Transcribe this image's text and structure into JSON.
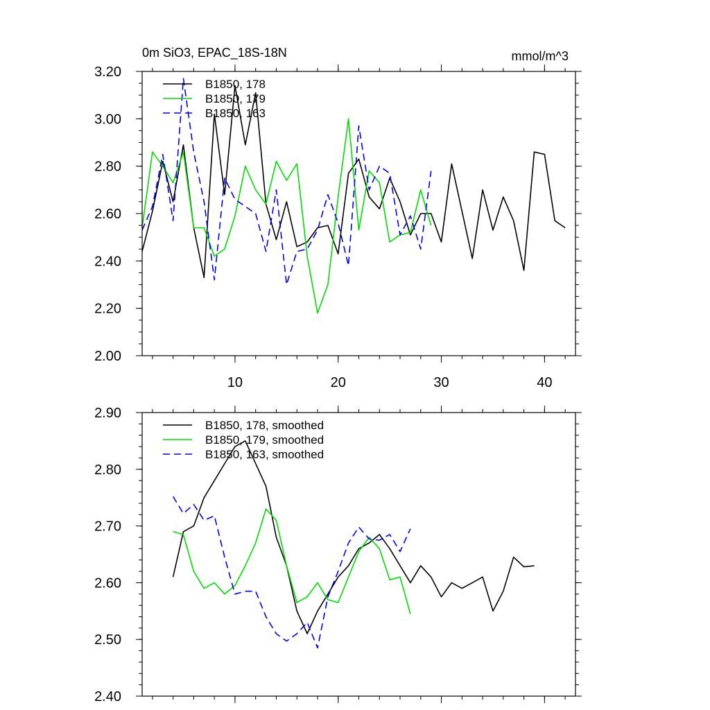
{
  "chart_data": [
    {
      "type": "line",
      "title": "0m SiO3, EPAC_18S-18N",
      "units": "mmol/m^3",
      "xlim": [
        1,
        43
      ],
      "ylim": [
        2.0,
        3.2
      ],
      "x_ticks": [
        10,
        20,
        30,
        40
      ],
      "x_tick_labels": [
        "10",
        "20",
        "30",
        "40"
      ],
      "y_ticks": [
        2.0,
        2.2,
        2.4,
        2.6,
        2.8,
        3.0,
        3.2
      ],
      "y_tick_labels": [
        "2.00",
        "2.20",
        "2.40",
        "2.60",
        "2.80",
        "3.00",
        "3.20"
      ],
      "legend_position": "top-left",
      "series": [
        {
          "name": "B1850, 178",
          "color": "#000000",
          "dash": "solid",
          "x": [
            1,
            2,
            3,
            4,
            5,
            6,
            7,
            8,
            9,
            10,
            11,
            12,
            13,
            14,
            15,
            16,
            17,
            18,
            19,
            20,
            21,
            22,
            23,
            24,
            25,
            26,
            27,
            28,
            29,
            30,
            31,
            32,
            33,
            34,
            35,
            36,
            37,
            38,
            39,
            40,
            41,
            42
          ],
          "values": [
            2.44,
            2.61,
            2.82,
            2.65,
            2.89,
            2.54,
            2.33,
            3.02,
            2.68,
            3.14,
            2.89,
            3.11,
            2.64,
            2.49,
            2.65,
            2.46,
            2.48,
            2.54,
            2.55,
            2.43,
            2.77,
            2.83,
            2.67,
            2.62,
            2.75,
            2.65,
            2.51,
            2.6,
            2.6,
            2.48,
            2.81,
            2.61,
            2.41,
            2.7,
            2.53,
            2.67,
            2.57,
            2.36,
            2.86,
            2.85,
            2.57,
            2.54
          ]
        },
        {
          "name": "B1850, 179",
          "color": "#00dd00",
          "dash": "solid",
          "x": [
            1,
            2,
            3,
            4,
            5,
            6,
            7,
            8,
            9,
            10,
            11,
            12,
            13,
            14,
            15,
            16,
            17,
            18,
            19,
            20,
            21,
            22,
            23,
            24,
            25,
            26,
            27,
            28,
            29
          ],
          "values": [
            2.54,
            2.86,
            2.8,
            2.73,
            2.86,
            2.54,
            2.54,
            2.42,
            2.45,
            2.59,
            2.8,
            2.7,
            2.64,
            2.82,
            2.74,
            2.81,
            2.42,
            2.18,
            2.3,
            2.67,
            3.0,
            2.53,
            2.78,
            2.73,
            2.48,
            2.51,
            2.52,
            2.7,
            2.55
          ]
        },
        {
          "name": "B1850, 163",
          "color": "#0000ee",
          "dash": "dashed",
          "x": [
            1,
            2,
            3,
            4,
            5,
            6,
            7,
            8,
            9,
            10,
            11,
            12,
            13,
            14,
            15,
            16,
            17,
            18,
            19,
            20,
            21,
            22,
            23,
            24,
            25,
            26,
            27,
            28,
            29
          ],
          "values": [
            2.53,
            2.63,
            2.85,
            2.57,
            3.17,
            2.86,
            2.65,
            2.32,
            2.75,
            2.66,
            2.63,
            2.6,
            2.44,
            2.7,
            2.3,
            2.44,
            2.45,
            2.53,
            2.68,
            2.56,
            2.38,
            2.97,
            2.7,
            2.8,
            2.77,
            2.51,
            2.59,
            2.45,
            2.78
          ]
        }
      ]
    },
    {
      "type": "line",
      "title": "",
      "xlim": [
        1,
        43
      ],
      "ylim": [
        2.4,
        2.9
      ],
      "x_ticks": [
        10,
        20,
        30,
        40
      ],
      "x_tick_labels": [],
      "y_ticks": [
        2.4,
        2.5,
        2.6,
        2.7,
        2.8,
        2.9
      ],
      "y_tick_labels": [
        "2.40",
        "2.50",
        "2.60",
        "2.70",
        "2.80",
        "2.90"
      ],
      "legend_position": "top-left",
      "series": [
        {
          "name": "B1850, 178, smoothed",
          "color": "#000000",
          "dash": "solid",
          "x": [
            4,
            5,
            6,
            7,
            8,
            9,
            10,
            11,
            12,
            13,
            14,
            15,
            16,
            17,
            18,
            19,
            20,
            21,
            22,
            23,
            24,
            25,
            26,
            27,
            28,
            29,
            30,
            31,
            32,
            33,
            34,
            35,
            36,
            37,
            38,
            39
          ],
          "values": [
            2.61,
            2.69,
            2.7,
            2.75,
            2.78,
            2.81,
            2.84,
            2.85,
            2.81,
            2.77,
            2.68,
            2.63,
            2.55,
            2.51,
            2.55,
            2.58,
            2.61,
            2.63,
            2.66,
            2.67,
            2.685,
            2.66,
            2.63,
            2.6,
            2.63,
            2.61,
            2.575,
            2.6,
            2.59,
            2.6,
            2.61,
            2.55,
            2.585,
            2.645,
            2.628,
            2.63
          ]
        },
        {
          "name": "B1850, 179, smoothed",
          "color": "#00dd00",
          "dash": "solid",
          "x": [
            4,
            5,
            6,
            7,
            8,
            9,
            10,
            11,
            12,
            13,
            14,
            15,
            16,
            17,
            18,
            19,
            20,
            21,
            22,
            23,
            24,
            25,
            26,
            27
          ],
          "values": [
            2.69,
            2.685,
            2.62,
            2.59,
            2.6,
            2.58,
            2.595,
            2.63,
            2.67,
            2.73,
            2.71,
            2.63,
            2.565,
            2.575,
            2.6,
            2.57,
            2.565,
            2.61,
            2.655,
            2.68,
            2.66,
            2.605,
            2.61,
            2.545
          ]
        },
        {
          "name": "B1850, 163, smoothed",
          "color": "#0000ee",
          "dash": "dashed",
          "x": [
            4,
            5,
            6,
            7,
            8,
            9,
            10,
            11,
            12,
            13,
            14,
            15,
            16,
            17,
            18,
            19,
            20,
            21,
            22,
            23,
            24,
            25,
            26,
            27
          ],
          "values": [
            2.752,
            2.722,
            2.738,
            2.71,
            2.718,
            2.645,
            2.58,
            2.585,
            2.585,
            2.54,
            2.51,
            2.497,
            2.51,
            2.53,
            2.485,
            2.575,
            2.62,
            2.67,
            2.698,
            2.677,
            2.675,
            2.685,
            2.655,
            2.695
          ]
        }
      ]
    }
  ]
}
